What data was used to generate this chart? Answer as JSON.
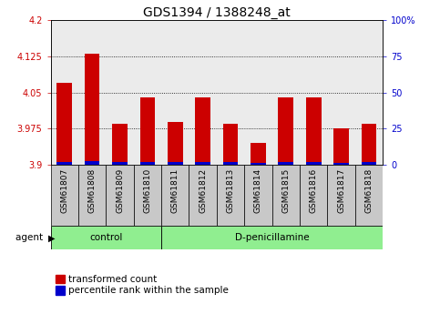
{
  "title": "GDS1394 / 1388248_at",
  "categories": [
    "GSM61807",
    "GSM61808",
    "GSM61809",
    "GSM61810",
    "GSM61811",
    "GSM61812",
    "GSM61813",
    "GSM61814",
    "GSM61815",
    "GSM61816",
    "GSM61817",
    "GSM61818"
  ],
  "red_values": [
    4.07,
    4.13,
    3.985,
    4.04,
    3.99,
    4.04,
    3.985,
    3.945,
    4.04,
    4.04,
    3.975,
    3.985
  ],
  "blue_values": [
    0.006,
    0.007,
    0.005,
    0.005,
    0.005,
    0.005,
    0.005,
    0.004,
    0.005,
    0.005,
    0.004,
    0.005
  ],
  "ymin": 3.9,
  "ymax": 4.2,
  "y_ticks": [
    3.9,
    3.975,
    4.05,
    4.125,
    4.2
  ],
  "y2min": 0,
  "y2max": 100,
  "y2_ticks": [
    0,
    25,
    50,
    75,
    100
  ],
  "bar_width": 0.55,
  "red_color": "#cc0000",
  "blue_color": "#0000cc",
  "grid_color": "#000000",
  "tick_fontsize": 7,
  "label_fontsize": 7.5,
  "title_fontsize": 10,
  "legend_fontsize": 7.5,
  "xtick_fontsize": 6.5,
  "control_n": 4,
  "dpen_n": 8,
  "green_color": "#90ee90",
  "gray_color": "#c8c8c8"
}
